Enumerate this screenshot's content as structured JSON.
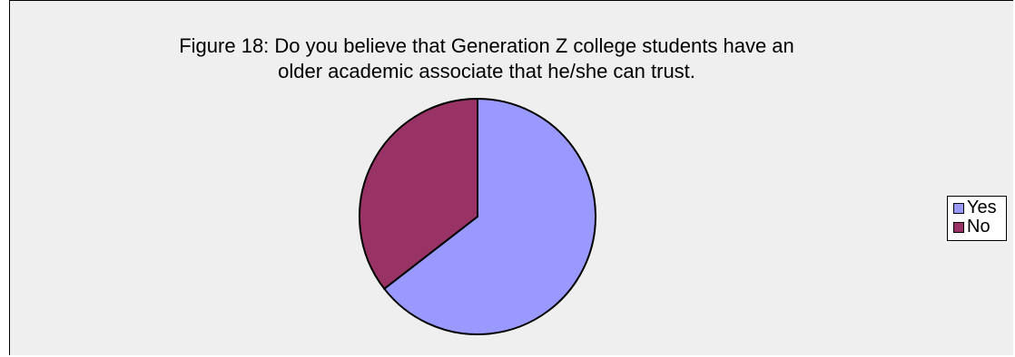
{
  "chart_data": {
    "type": "pie",
    "title": "Figure 18: Do you believe that Generation Z college students have an older academic associate that he/she can trust.",
    "title_lines": [
      "Figure 18: Do you believe that Generation Z college students have an",
      "older academic associate that he/she can trust."
    ],
    "categories": [
      "Yes",
      "No"
    ],
    "values": [
      64.5,
      35.5
    ],
    "colors": [
      "#9999ff",
      "#993366"
    ],
    "legend_position": "right",
    "start_angle_deg": 0,
    "direction": "clockwise"
  }
}
